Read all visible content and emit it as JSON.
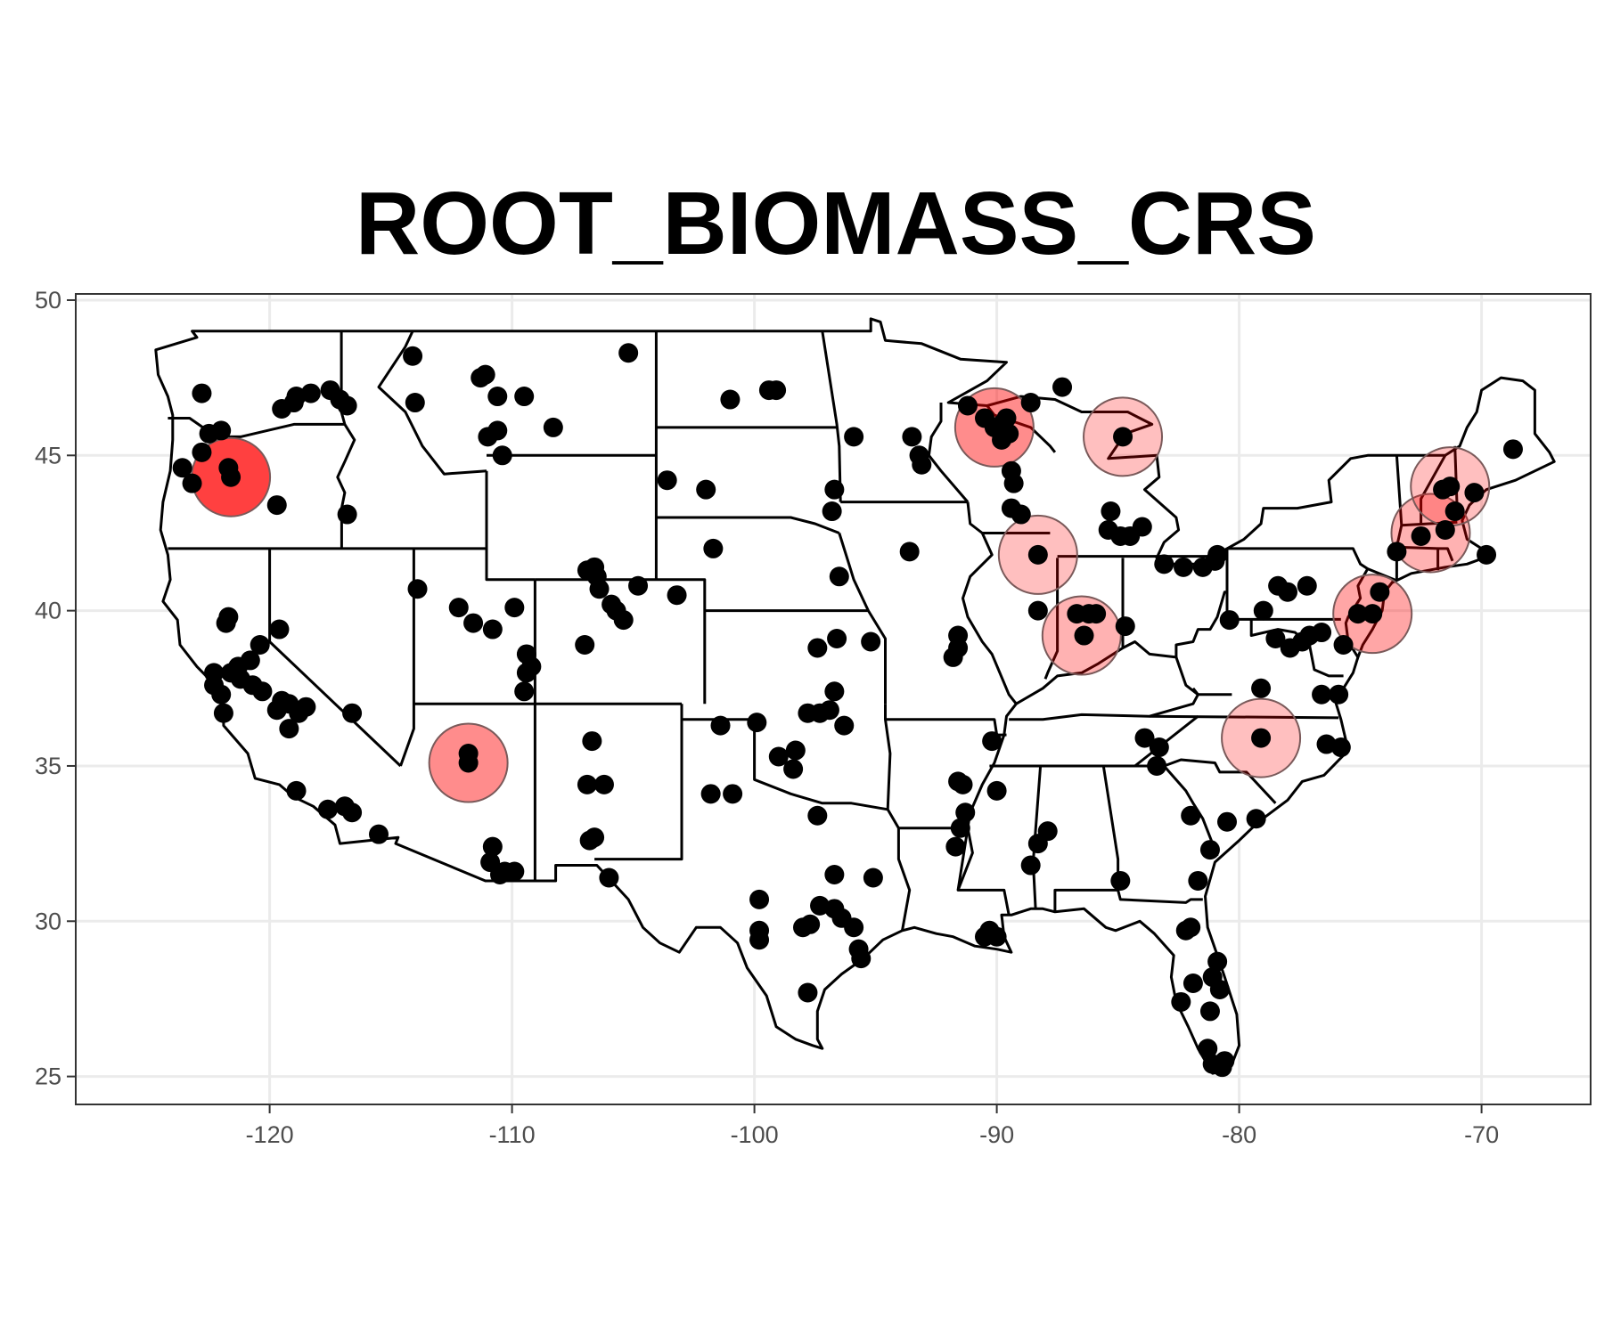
{
  "chart_data": {
    "type": "scatter",
    "title": "ROOT_BIOMASS_CRS",
    "xlabel": "",
    "ylabel": "",
    "xlim": [
      -128,
      -65.5
    ],
    "ylim": [
      24.1,
      50.2
    ],
    "x_ticks": [
      -120,
      -110,
      -100,
      -90,
      -80,
      -70
    ],
    "x_tick_labels": [
      "-120",
      "-110",
      "-100",
      "-90",
      "-80",
      "-70"
    ],
    "y_ticks": [
      25,
      30,
      35,
      40,
      45,
      50
    ],
    "y_tick_labels": [
      "25",
      "30",
      "35",
      "40",
      "45",
      "50"
    ],
    "grid": true,
    "basemap": "contiguous United States with state borders",
    "colors": {
      "site": "#000000",
      "hotspot": "#ff0000",
      "border": "#000000",
      "grid": "#ebebeb"
    },
    "hotspots": [
      {
        "lon": -121.6,
        "lat": 44.3,
        "intensity": 0.75
      },
      {
        "lon": -111.8,
        "lat": 35.1,
        "intensity": 0.45
      },
      {
        "lon": -90.1,
        "lat": 45.9,
        "intensity": 0.45
      },
      {
        "lon": -84.8,
        "lat": 45.6,
        "intensity": 0.25
      },
      {
        "lon": -88.3,
        "lat": 41.8,
        "intensity": 0.25
      },
      {
        "lon": -86.5,
        "lat": 39.2,
        "intensity": 0.3
      },
      {
        "lon": -79.1,
        "lat": 35.9,
        "intensity": 0.25
      },
      {
        "lon": -74.5,
        "lat": 39.9,
        "intensity": 0.35
      },
      {
        "lon": -72.1,
        "lat": 42.5,
        "intensity": 0.3
      },
      {
        "lon": -71.3,
        "lat": 44.0,
        "intensity": 0.25
      }
    ],
    "sites": [
      [
        -122.8,
        47.0
      ],
      [
        -122.5,
        45.7
      ],
      [
        -122.0,
        45.8
      ],
      [
        -122.8,
        45.1
      ],
      [
        -121.6,
        44.3
      ],
      [
        -121.7,
        44.6
      ],
      [
        -123.6,
        44.6
      ],
      [
        -123.2,
        44.1
      ],
      [
        -119.7,
        43.4
      ],
      [
        -119.5,
        46.5
      ],
      [
        -119.0,
        46.7
      ],
      [
        -118.9,
        46.9
      ],
      [
        -118.3,
        47.0
      ],
      [
        -117.5,
        47.1
      ],
      [
        -117.1,
        46.8
      ],
      [
        -116.8,
        46.6
      ],
      [
        -116.8,
        43.1
      ],
      [
        -114.1,
        48.2
      ],
      [
        -114.0,
        46.7
      ],
      [
        -111.3,
        47.5
      ],
      [
        -111.1,
        47.6
      ],
      [
        -110.6,
        46.9
      ],
      [
        -109.5,
        46.9
      ],
      [
        -111.0,
        45.6
      ],
      [
        -110.6,
        45.8
      ],
      [
        -110.4,
        45.0
      ],
      [
        -108.3,
        45.9
      ],
      [
        -105.2,
        48.3
      ],
      [
        -113.9,
        40.7
      ],
      [
        -112.2,
        40.1
      ],
      [
        -111.6,
        39.6
      ],
      [
        -109.9,
        40.1
      ],
      [
        -110.8,
        39.4
      ],
      [
        -109.4,
        38.6
      ],
      [
        -109.4,
        38.0
      ],
      [
        -109.2,
        38.2
      ],
      [
        -109.5,
        37.4
      ],
      [
        -107.0,
        38.9
      ],
      [
        -106.9,
        41.3
      ],
      [
        -106.6,
        41.4
      ],
      [
        -106.5,
        41.1
      ],
      [
        -106.4,
        40.7
      ],
      [
        -105.9,
        40.2
      ],
      [
        -105.7,
        40.0
      ],
      [
        -105.4,
        39.7
      ],
      [
        -104.8,
        40.8
      ],
      [
        -103.2,
        40.5
      ],
      [
        -101.0,
        46.8
      ],
      [
        -99.4,
        47.1
      ],
      [
        -99.1,
        47.1
      ],
      [
        -103.6,
        44.2
      ],
      [
        -102.0,
        43.9
      ],
      [
        -101.7,
        42.0
      ],
      [
        -96.7,
        43.9
      ],
      [
        -96.8,
        43.2
      ],
      [
        -95.9,
        45.6
      ],
      [
        -96.5,
        41.1
      ],
      [
        -97.4,
        38.8
      ],
      [
        -96.6,
        39.1
      ],
      [
        -95.2,
        39.0
      ],
      [
        -96.7,
        37.4
      ],
      [
        -96.9,
        36.8
      ],
      [
        -97.3,
        36.7
      ],
      [
        -97.8,
        36.7
      ],
      [
        -96.3,
        36.3
      ],
      [
        -98.3,
        35.5
      ],
      [
        -98.4,
        34.9
      ],
      [
        -99.0,
        35.3
      ],
      [
        -99.9,
        36.4
      ],
      [
        -101.4,
        36.3
      ],
      [
        -101.8,
        34.1
      ],
      [
        -97.4,
        33.4
      ],
      [
        -96.7,
        31.5
      ],
      [
        -95.1,
        31.4
      ],
      [
        -99.8,
        30.7
      ],
      [
        -99.8,
        29.7
      ],
      [
        -99.8,
        29.4
      ],
      [
        -98.0,
        29.8
      ],
      [
        -97.7,
        29.9
      ],
      [
        -97.3,
        30.5
      ],
      [
        -96.7,
        30.4
      ],
      [
        -96.4,
        30.1
      ],
      [
        -95.9,
        29.8
      ],
      [
        -95.7,
        29.1
      ],
      [
        -95.6,
        28.8
      ],
      [
        -97.8,
        27.7
      ],
      [
        -93.5,
        45.6
      ],
      [
        -93.2,
        45.0
      ],
      [
        -93.1,
        44.7
      ],
      [
        -93.6,
        41.9
      ],
      [
        -91.6,
        39.2
      ],
      [
        -91.6,
        38.8
      ],
      [
        -91.8,
        38.5
      ],
      [
        -91.6,
        34.5
      ],
      [
        -91.4,
        34.4
      ],
      [
        -91.3,
        33.5
      ],
      [
        -91.5,
        33.0
      ],
      [
        -91.7,
        32.4
      ],
      [
        -90.2,
        35.8
      ],
      [
        -90.0,
        34.2
      ],
      [
        -87.9,
        32.9
      ],
      [
        -88.3,
        32.5
      ],
      [
        -88.6,
        31.8
      ],
      [
        -90.5,
        29.5
      ],
      [
        -90.3,
        29.7
      ],
      [
        -90.0,
        29.5
      ],
      [
        -91.2,
        46.6
      ],
      [
        -90.5,
        46.2
      ],
      [
        -90.1,
        45.9
      ],
      [
        -89.8,
        46.0
      ],
      [
        -89.6,
        46.2
      ],
      [
        -89.5,
        45.7
      ],
      [
        -89.8,
        45.5
      ],
      [
        -88.6,
        46.7
      ],
      [
        -87.3,
        47.2
      ],
      [
        -89.4,
        44.5
      ],
      [
        -89.3,
        44.1
      ],
      [
        -89.4,
        43.3
      ],
      [
        -89.0,
        43.1
      ],
      [
        -88.3,
        41.8
      ],
      [
        -88.3,
        40.0
      ],
      [
        -86.7,
        39.9
      ],
      [
        -86.2,
        39.9
      ],
      [
        -85.9,
        39.9
      ],
      [
        -86.4,
        39.2
      ],
      [
        -84.7,
        39.5
      ],
      [
        -85.3,
        43.2
      ],
      [
        -85.4,
        42.6
      ],
      [
        -84.9,
        42.4
      ],
      [
        -84.5,
        42.4
      ],
      [
        -84.0,
        42.7
      ],
      [
        -84.8,
        45.6
      ],
      [
        -83.1,
        41.5
      ],
      [
        -82.3,
        41.4
      ],
      [
        -81.5,
        41.4
      ],
      [
        -81.0,
        41.6
      ],
      [
        -80.9,
        41.8
      ],
      [
        -80.4,
        39.7
      ],
      [
        -79.0,
        40.0
      ],
      [
        -78.4,
        40.8
      ],
      [
        -78.0,
        40.6
      ],
      [
        -77.2,
        40.8
      ],
      [
        -78.5,
        39.1
      ],
      [
        -77.4,
        39.0
      ],
      [
        -77.1,
        39.2
      ],
      [
        -76.6,
        39.3
      ],
      [
        -75.7,
        38.9
      ],
      [
        -75.1,
        39.9
      ],
      [
        -74.5,
        39.9
      ],
      [
        -74.2,
        40.6
      ],
      [
        -73.5,
        41.9
      ],
      [
        -72.5,
        42.4
      ],
      [
        -71.5,
        42.6
      ],
      [
        -71.1,
        43.2
      ],
      [
        -71.3,
        44.0
      ],
      [
        -71.6,
        43.9
      ],
      [
        -70.3,
        43.8
      ],
      [
        -68.7,
        45.2
      ],
      [
        -69.8,
        41.8
      ],
      [
        -77.9,
        38.8
      ],
      [
        -76.6,
        37.3
      ],
      [
        -75.9,
        37.3
      ],
      [
        -79.1,
        37.5
      ],
      [
        -79.1,
        35.9
      ],
      [
        -83.9,
        35.9
      ],
      [
        -83.3,
        35.6
      ],
      [
        -83.4,
        35.0
      ],
      [
        -82.0,
        33.4
      ],
      [
        -81.2,
        32.3
      ],
      [
        -80.5,
        33.2
      ],
      [
        -79.3,
        33.3
      ],
      [
        -76.4,
        35.7
      ],
      [
        -75.8,
        35.6
      ],
      [
        -84.9,
        31.3
      ],
      [
        -82.2,
        29.7
      ],
      [
        -82.0,
        29.8
      ],
      [
        -81.7,
        31.3
      ],
      [
        -81.2,
        27.1
      ],
      [
        -80.9,
        28.7
      ],
      [
        -81.1,
        28.2
      ],
      [
        -81.9,
        28.0
      ],
      [
        -82.4,
        27.4
      ],
      [
        -80.8,
        27.8
      ],
      [
        -81.3,
        25.9
      ],
      [
        -81.1,
        25.4
      ],
      [
        -80.7,
        25.3
      ],
      [
        -80.6,
        25.5
      ],
      [
        -115.5,
        32.8
      ],
      [
        -116.6,
        33.5
      ],
      [
        -116.9,
        33.7
      ],
      [
        -117.6,
        33.6
      ],
      [
        -118.9,
        34.2
      ],
      [
        -118.8,
        36.7
      ],
      [
        -119.2,
        36.2
      ],
      [
        -118.5,
        36.9
      ],
      [
        -119.2,
        37.0
      ],
      [
        -119.5,
        37.1
      ],
      [
        -119.7,
        36.8
      ],
      [
        -120.3,
        37.4
      ],
      [
        -120.7,
        37.6
      ],
      [
        -121.2,
        37.8
      ],
      [
        -121.6,
        38.0
      ],
      [
        -121.3,
        38.2
      ],
      [
        -120.8,
        38.4
      ],
      [
        -120.4,
        38.9
      ],
      [
        -119.6,
        39.4
      ],
      [
        -121.8,
        39.6
      ],
      [
        -121.7,
        39.8
      ],
      [
        -116.6,
        36.7
      ],
      [
        -121.9,
        36.7
      ],
      [
        -122.0,
        37.3
      ],
      [
        -122.3,
        37.6
      ],
      [
        -122.3,
        38.0
      ],
      [
        -111.8,
        35.1
      ],
      [
        -111.8,
        35.4
      ],
      [
        -110.8,
        32.4
      ],
      [
        -110.9,
        31.9
      ],
      [
        -110.3,
        31.6
      ],
      [
        -109.9,
        31.6
      ],
      [
        -110.5,
        31.5
      ],
      [
        -106.7,
        35.8
      ],
      [
        -106.9,
        34.4
      ],
      [
        -106.2,
        34.4
      ],
      [
        -106.8,
        32.6
      ],
      [
        -106.6,
        32.7
      ],
      [
        -106.0,
        31.4
      ],
      [
        -100.9,
        34.1
      ]
    ]
  }
}
